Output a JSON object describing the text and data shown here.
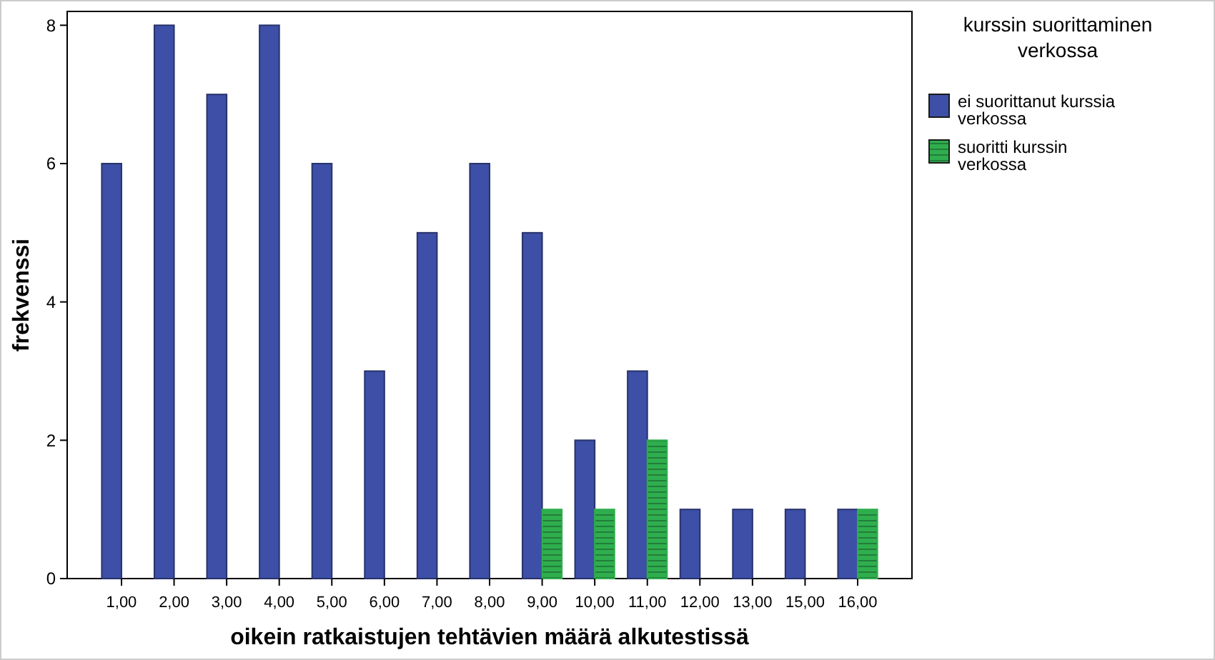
{
  "chart_data": {
    "type": "bar",
    "xlabel": "oikein ratkaistujen tehtävien määrä alkutestissä",
    "ylabel": "frekvenssi",
    "legend_title": "kurssin suorittaminen verkossa",
    "legend": "right",
    "grid": false,
    "categories": [
      "1,00",
      "2,00",
      "3,00",
      "4,00",
      "5,00",
      "6,00",
      "7,00",
      "8,00",
      "9,00",
      "10,00",
      "11,00",
      "12,00",
      "13,00",
      "15,00",
      "16,00"
    ],
    "ylim": [
      0,
      8.2
    ],
    "yticks": [
      0,
      2,
      4,
      6,
      8
    ],
    "series": [
      {
        "name": "ei suorittanut kurssia verkossa",
        "color": "#3d4fa6",
        "values": [
          6,
          8,
          7,
          8,
          6,
          3,
          5,
          6,
          5,
          2,
          3,
          1,
          1,
          1,
          1
        ]
      },
      {
        "name": "suoritti kurssin verkossa",
        "color": "#2fae4e",
        "values": [
          null,
          null,
          null,
          null,
          null,
          null,
          null,
          null,
          1,
          1,
          2,
          null,
          null,
          null,
          1
        ]
      }
    ]
  }
}
